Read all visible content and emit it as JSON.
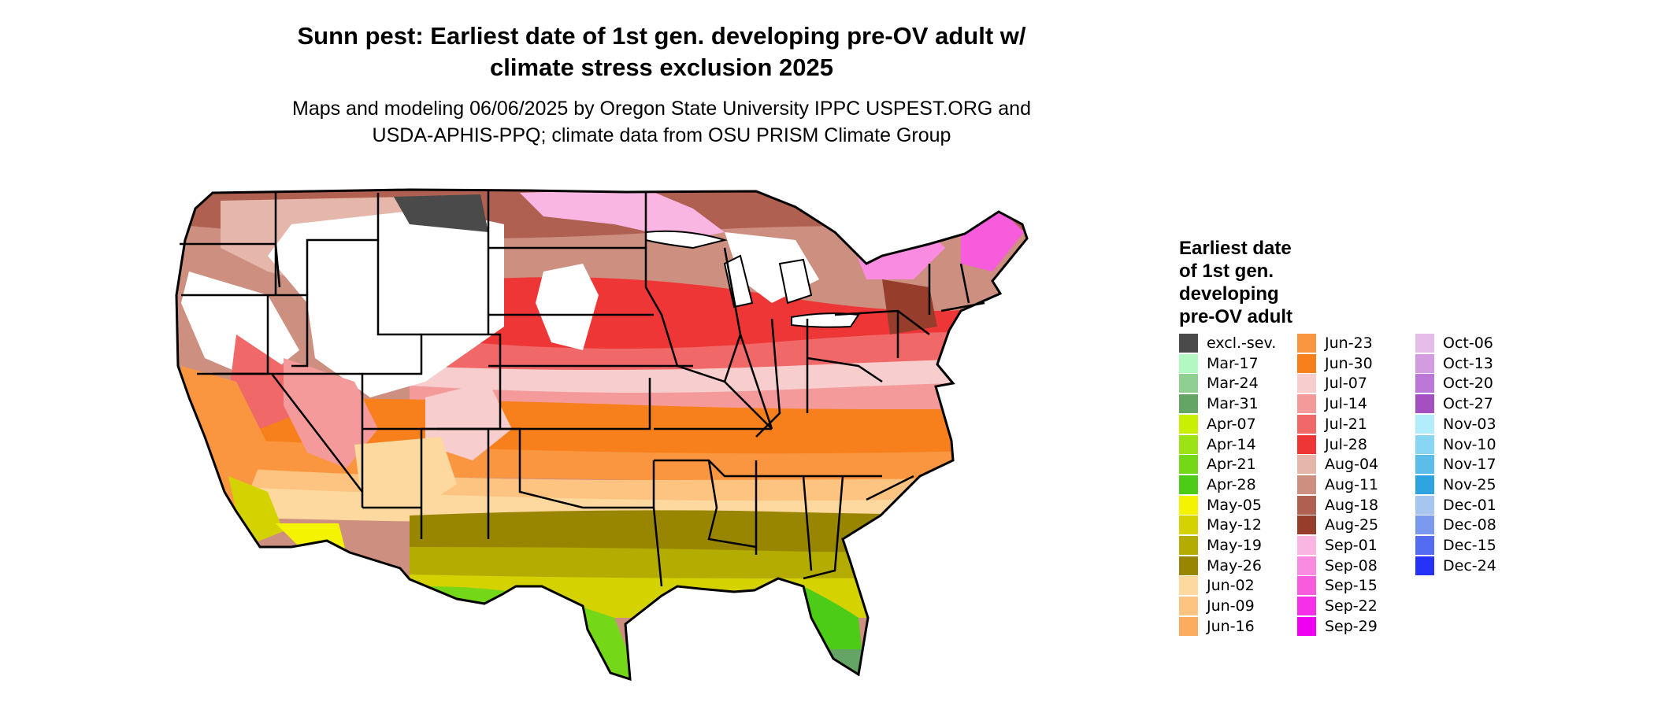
{
  "title": {
    "line1": "Sunn pest: Earliest date of 1st gen. developing pre-OV adult w/",
    "line2": "climate stress exclusion 2025"
  },
  "subtitle": {
    "line1": "Maps and modeling 06/06/2025 by Oregon State University IPPC USPEST.ORG and",
    "line2": "USDA-APHIS-PPQ; climate data from OSU PRISM Climate Group"
  },
  "map": {
    "region": "Contiguous United States",
    "scale_type": "categorical date"
  },
  "legend": {
    "title_lines": [
      "Earliest date",
      "of 1st gen.",
      "developing",
      "pre-OV adult"
    ],
    "items": [
      {
        "label": "excl.-sev.",
        "color": "#4a4a4a"
      },
      {
        "label": "Mar-17",
        "color": "#b3f7c2"
      },
      {
        "label": "Mar-24",
        "color": "#8fcf92"
      },
      {
        "label": "Mar-31",
        "color": "#64a565"
      },
      {
        "label": "Apr-07",
        "color": "#c8f000"
      },
      {
        "label": "Apr-14",
        "color": "#9ce316"
      },
      {
        "label": "Apr-21",
        "color": "#74d717"
      },
      {
        "label": "Apr-28",
        "color": "#4ccb17"
      },
      {
        "label": "May-05",
        "color": "#f4f400"
      },
      {
        "label": "May-12",
        "color": "#d4d200"
      },
      {
        "label": "May-19",
        "color": "#b4ac00"
      },
      {
        "label": "May-26",
        "color": "#988600"
      },
      {
        "label": "Jun-02",
        "color": "#fdd9a0"
      },
      {
        "label": "Jun-09",
        "color": "#fcc381"
      },
      {
        "label": "Jun-16",
        "color": "#fbac5e"
      },
      {
        "label": "Jun-23",
        "color": "#fa9640"
      },
      {
        "label": "Jun-30",
        "color": "#f7801c"
      },
      {
        "label": "Jul-07",
        "color": "#f7cdcd"
      },
      {
        "label": "Jul-14",
        "color": "#f49a9a"
      },
      {
        "label": "Jul-21",
        "color": "#f06868"
      },
      {
        "label": "Jul-28",
        "color": "#ee3636"
      },
      {
        "label": "Aug-04",
        "color": "#e5b6aa"
      },
      {
        "label": "Aug-11",
        "color": "#cc8f80"
      },
      {
        "label": "Aug-18",
        "color": "#b06050"
      },
      {
        "label": "Aug-25",
        "color": "#963d2c"
      },
      {
        "label": "Sep-01",
        "color": "#fab6e2"
      },
      {
        "label": "Sep-08",
        "color": "#f98be0"
      },
      {
        "label": "Sep-15",
        "color": "#f65cdc"
      },
      {
        "label": "Sep-22",
        "color": "#f530e6"
      },
      {
        "label": "Sep-29",
        "color": "#f000f0"
      },
      {
        "label": "Oct-06",
        "color": "#e6bde8"
      },
      {
        "label": "Oct-13",
        "color": "#d39ce0"
      },
      {
        "label": "Oct-20",
        "color": "#bc78d6"
      },
      {
        "label": "Oct-27",
        "color": "#a450c0"
      },
      {
        "label": "Nov-03",
        "color": "#b3ecfb"
      },
      {
        "label": "Nov-10",
        "color": "#89d6f4"
      },
      {
        "label": "Nov-17",
        "color": "#5bbeea"
      },
      {
        "label": "Nov-25",
        "color": "#2ea4e0"
      },
      {
        "label": "Dec-01",
        "color": "#a6c5ef"
      },
      {
        "label": "Dec-08",
        "color": "#7b99ef"
      },
      {
        "label": "Dec-15",
        "color": "#546cf2"
      },
      {
        "label": "Dec-24",
        "color": "#2632f8"
      }
    ]
  }
}
